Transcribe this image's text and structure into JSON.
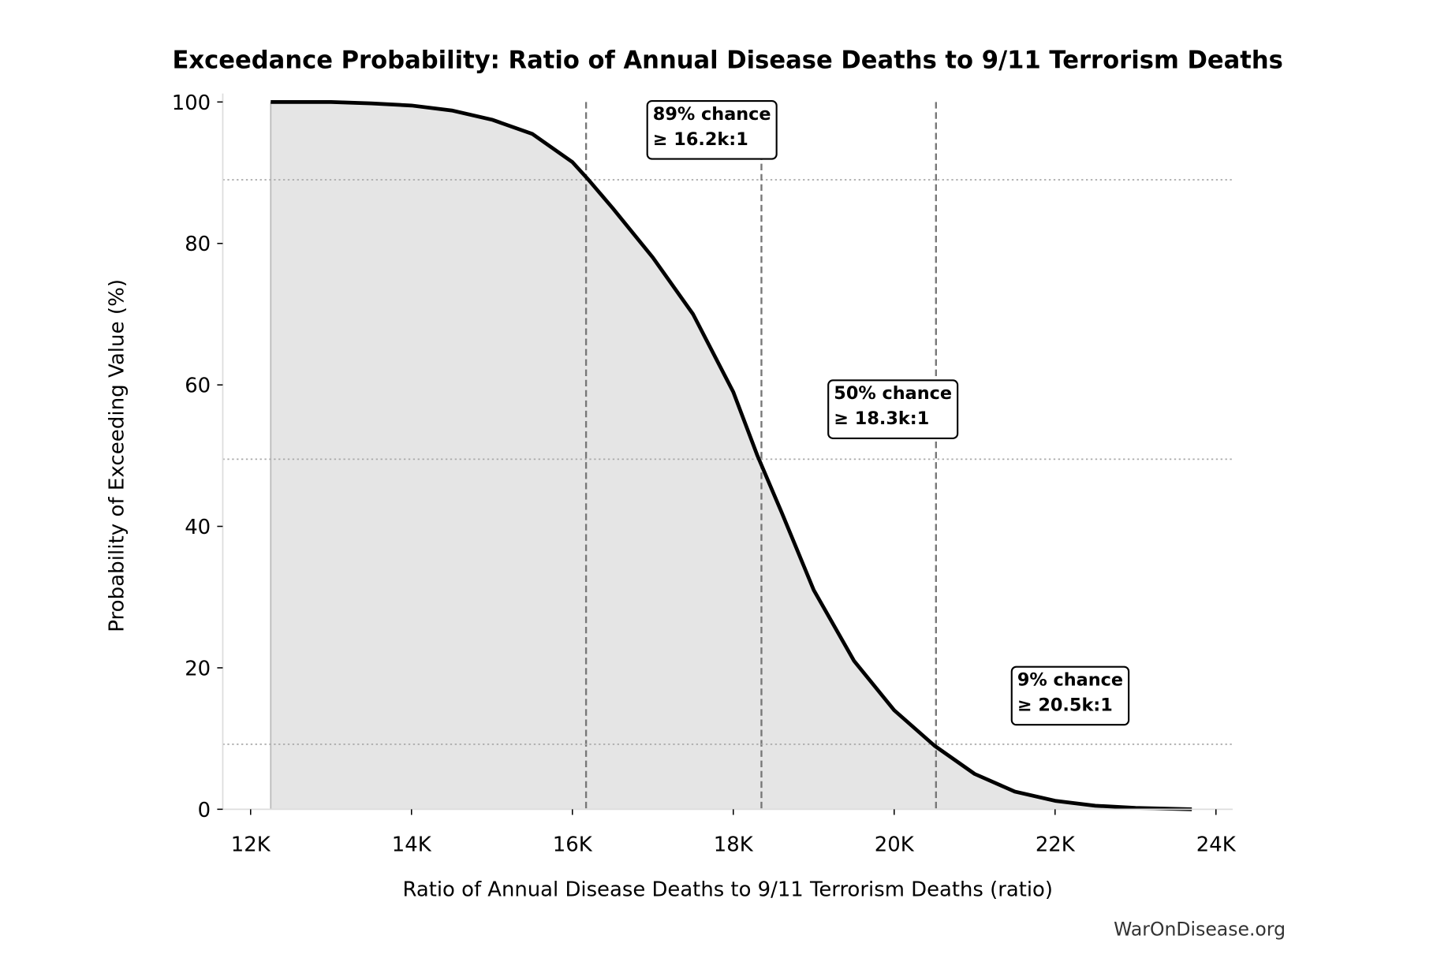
{
  "chart_data": {
    "type": "area",
    "title": "Exceedance Probability: Ratio of Annual Disease Deaths to 9/11 Terrorism Deaths",
    "xlabel": "Ratio of Annual Disease Deaths to 9/11 Terrorism Deaths (ratio)",
    "ylabel": "Probability of Exceeding Value (%)",
    "xlim": [
      11650,
      24200
    ],
    "ylim": [
      0,
      100
    ],
    "x_ticks": [
      12000,
      14000,
      16000,
      18000,
      20000,
      22000,
      24000
    ],
    "x_tick_labels": [
      "12K",
      "14K",
      "16K",
      "18K",
      "20K",
      "22K",
      "24K"
    ],
    "y_ticks": [
      0,
      20,
      40,
      60,
      80,
      100
    ],
    "y_tick_labels": [
      "0",
      "20",
      "40",
      "60",
      "80",
      "100"
    ],
    "grid": false,
    "fill_color": "#e5e5e5",
    "line_color": "#000000",
    "series": [
      {
        "x": [
          12250,
          13000,
          13500,
          14000,
          14500,
          15000,
          15500,
          16000,
          16200,
          16500,
          17000,
          17500,
          18000,
          18300,
          18600,
          19000,
          19500,
          20000,
          20500,
          21000,
          21500,
          22000,
          22500,
          23000,
          23700
        ],
        "y": [
          100,
          100,
          99.8,
          99.5,
          98.8,
          97.5,
          95.5,
          91.5,
          89,
          85,
          78,
          70,
          59,
          50,
          42,
          31,
          21,
          14,
          9,
          5,
          2.5,
          1.2,
          0.5,
          0.2,
          0
        ]
      }
    ],
    "reference_lines": [
      {
        "x": 16170,
        "y": 89,
        "label_line1": "89% chance",
        "label_line2": "≥ 16.2k:1",
        "label_at": [
          17000,
          97.5
        ]
      },
      {
        "x": 18350,
        "y": 49.5,
        "label_line1": "50% chance",
        "label_line2": "≥ 18.3k:1",
        "label_at": [
          19250,
          58
        ]
      },
      {
        "x": 20520,
        "y": 9.2,
        "label_line1": "9% chance",
        "label_line2": "≥ 20.5k:1",
        "label_at": [
          21530,
          17.5
        ]
      }
    ],
    "watermark": "WarOnDisease.org"
  }
}
